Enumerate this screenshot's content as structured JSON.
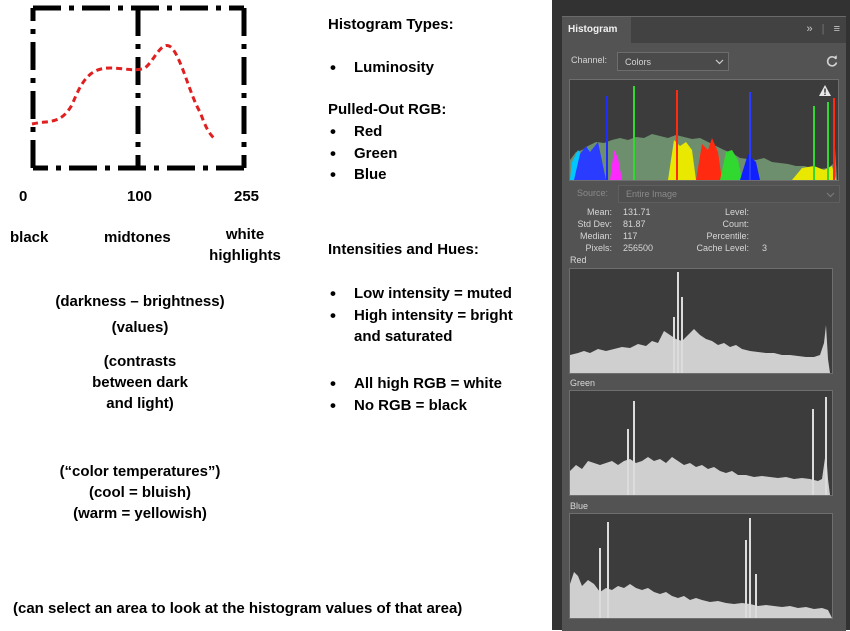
{
  "scale": {
    "tick_0": "0",
    "tick_100": "100",
    "tick_255": "255",
    "label_black": "black",
    "label_midtones": "midtones",
    "label_white_line1": "white",
    "label_white_line2": "highlights"
  },
  "notes": {
    "darkness": "(darkness – brightness)",
    "values": "(values)",
    "contrasts_1": "(contrasts",
    "contrasts_2": "between dark",
    "contrasts_3": "and light)",
    "temp_1": "(“color temperatures”)",
    "temp_2": "(cool = bluish)",
    "temp_3": "(warm = yellowish)",
    "bottom": "(can select an area to look at the histogram values of that area)"
  },
  "middle": {
    "types_heading": "Histogram Types:",
    "types_items": [
      "Luminosity"
    ],
    "rgb_heading": "Pulled-Out RGB:",
    "rgb_items": [
      "Red",
      "Green",
      "Blue"
    ],
    "intens_heading": "Intensities and Hues:",
    "intens_item1": "Low intensity = muted",
    "intens_item2_line1": "High intensity = bright",
    "intens_item2_line2": "and saturated",
    "rgb_item1": "All high RGB = white",
    "rgb_item2": "No RGB = black"
  },
  "panel": {
    "tab_label": "Histogram",
    "expand_glyph": "»",
    "menu_glyph": "≡",
    "channel_label": "Channel:",
    "channel_value": "Colors",
    "refresh_icon": "refresh-icon",
    "source_label": "Source:",
    "source_value": "Entire Image",
    "stats": {
      "mean_label": "Mean:",
      "mean_value": "131.71",
      "std_label": "Std Dev:",
      "std_value": "81.87",
      "median_label": "Median:",
      "median_value": "117",
      "pixels_label": "Pixels:",
      "pixels_value": "256500",
      "level_label": "Level:",
      "count_label": "Count:",
      "percentile_label": "Percentile:",
      "cache_label": "Cache Level:",
      "cache_value": "3"
    },
    "channels": [
      "Red",
      "Green",
      "Blue"
    ]
  },
  "colors": {
    "curve": "#e02020",
    "panel_bg": "#535353",
    "graph_bg": "#3c3c3c",
    "hist_fill": "#cfcfcf"
  }
}
